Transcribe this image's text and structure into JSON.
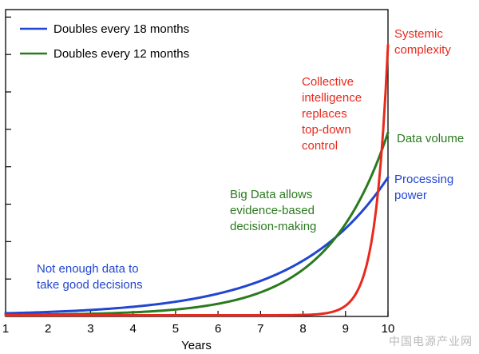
{
  "chart_data": {
    "type": "line",
    "xlabel": "Years",
    "ylabel": "",
    "xlim": [
      1,
      10
    ],
    "x_ticks": [
      "1",
      "2",
      "3",
      "4",
      "5",
      "6",
      "7",
      "8",
      "9",
      "10"
    ],
    "y_tick_count": 8,
    "grid": false,
    "legend_position": "top-left",
    "series": [
      {
        "name": "Doubles every 18 months",
        "color": "#2146d0",
        "doubling_months": 18
      },
      {
        "name": "Doubles every 12 months",
        "color": "#2a7a1e",
        "doubling_months": 12
      },
      {
        "name": "",
        "color": "#e8291c"
      }
    ],
    "annotations": [
      {
        "lines": [
          "Systemic",
          "complexity"
        ],
        "color": "#e8291c"
      },
      {
        "lines": [
          "Collective",
          "intelligence",
          "replaces",
          "top-down",
          "control"
        ],
        "color": "#e8291c"
      },
      {
        "lines": [
          "Data volume"
        ],
        "color": "#2a7a1e"
      },
      {
        "lines": [
          "Processing",
          "power"
        ],
        "color": "#2146d0"
      },
      {
        "lines": [
          "Big Data allows",
          "evidence-based",
          "decision-making"
        ],
        "color": "#2a7a1e"
      },
      {
        "lines": [
          "Not enough data to",
          "take good decisions"
        ],
        "color": "#2146d0"
      }
    ]
  },
  "watermark": "中国电源产业网"
}
